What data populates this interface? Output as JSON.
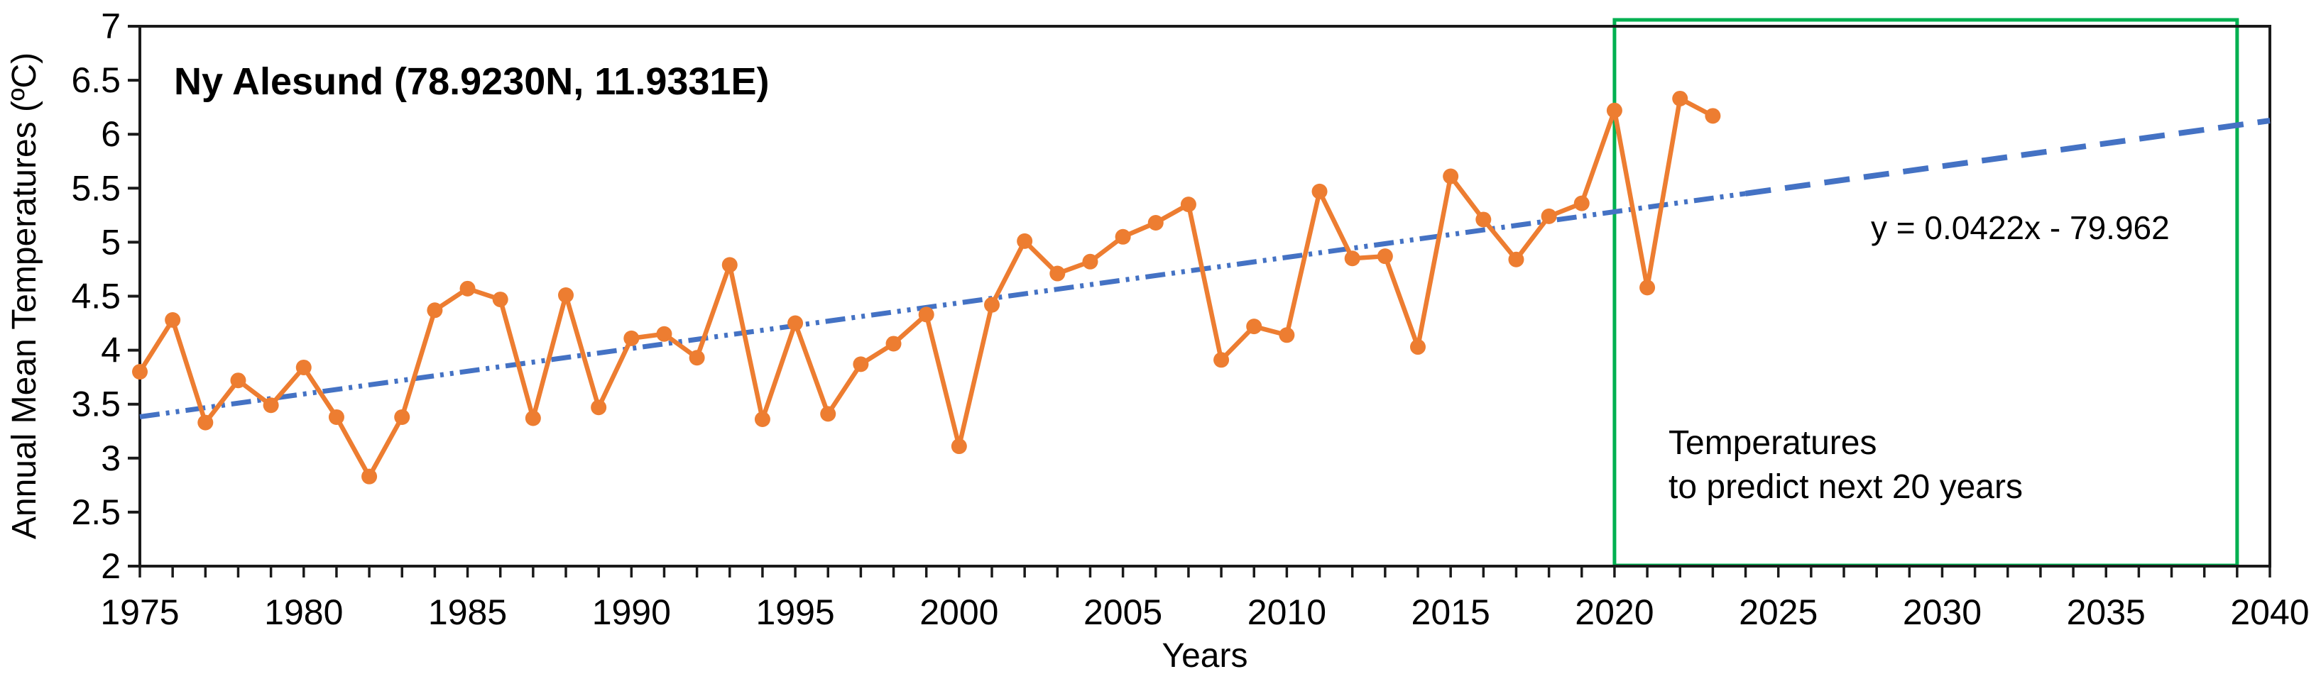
{
  "chart": {
    "colors": {
      "series_orange": "#ED7D31",
      "trend_blue": "#4472C4",
      "highlight_green": "#00B050",
      "axis_black": "#1a1a1a",
      "background": "#ffffff"
    }
  },
  "chart_data": {
    "type": "line",
    "title": "Ny Alesund (78.9230N, 11.9331E)",
    "xlabel": "Years",
    "ylabel": "Annual Mean Temperatures (ºC)",
    "grid": false,
    "legend": false,
    "x_axis": {
      "min": 1975,
      "max": 2040,
      "minor_tick_step": 1,
      "label_step": 5,
      "tick_labels": [
        "1975",
        "1980",
        "1985",
        "1990",
        "1995",
        "2000",
        "2005",
        "2010",
        "2015",
        "2020",
        "2025",
        "2030",
        "2035",
        "2040"
      ]
    },
    "y_axis": {
      "min": 2,
      "max": 7,
      "tick_step": 0.5,
      "tick_labels": [
        "2",
        "2.5",
        "3",
        "3.5",
        "4",
        "4.5",
        "5",
        "5.5",
        "6",
        "6.5",
        "7"
      ]
    },
    "x": [
      1975,
      1976,
      1977,
      1978,
      1979,
      1980,
      1981,
      1982,
      1983,
      1984,
      1985,
      1986,
      1987,
      1988,
      1989,
      1990,
      1991,
      1992,
      1993,
      1994,
      1995,
      1996,
      1997,
      1998,
      1999,
      2000,
      2001,
      2002,
      2003,
      2004,
      2005,
      2006,
      2007,
      2008,
      2009,
      2010,
      2011,
      2012,
      2013,
      2014,
      2015,
      2016,
      2017,
      2018,
      2019,
      2020,
      2021,
      2022,
      2023
    ],
    "series": [
      {
        "name": "Annual mean temperature",
        "values": [
          3.8,
          4.28,
          3.33,
          3.72,
          3.49,
          3.84,
          3.38,
          2.83,
          3.38,
          4.37,
          4.57,
          4.47,
          3.37,
          4.51,
          3.47,
          4.11,
          4.15,
          3.93,
          4.79,
          3.36,
          4.25,
          3.41,
          3.87,
          4.06,
          4.33,
          3.11,
          4.42,
          5.01,
          4.71,
          4.82,
          5.05,
          5.18,
          5.35,
          3.91,
          4.22,
          4.14,
          5.47,
          4.85,
          4.87,
          4.03,
          5.61,
          5.21,
          4.84,
          5.24,
          5.36,
          6.22,
          4.58,
          6.33,
          6.17
        ]
      }
    ],
    "trendline": {
      "equation_label": "y = 0.0422x - 79.962",
      "slope": 0.0422,
      "intercept": -79.962,
      "fit_dashdot_from": 1975,
      "fit_dashdot_to": 2024,
      "forecast_dash_from": 2024,
      "forecast_dash_to": 2040
    },
    "highlight_box": {
      "x_from": 2020,
      "x_to": 2039,
      "lines": [
        "Temperatures",
        "to predict next 20 years"
      ]
    }
  }
}
